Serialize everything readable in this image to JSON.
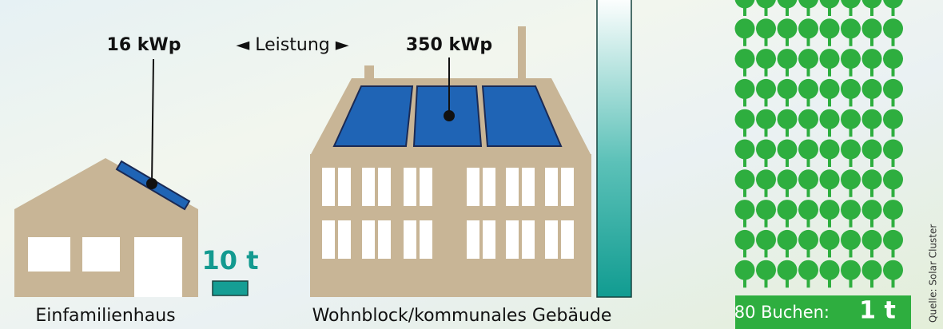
{
  "house": {
    "power": "16 kWp",
    "co2": "10 t",
    "label": "Einfamilienhaus"
  },
  "legend": "◄ Leistung ►",
  "block": {
    "power": "350 kWp",
    "label": "Wohnblock/kommunales Gebäude"
  },
  "trees": {
    "count_label": "80 Buchen:",
    "co2": "1 t"
  },
  "source": "Quelle: Solar Cluster"
}
